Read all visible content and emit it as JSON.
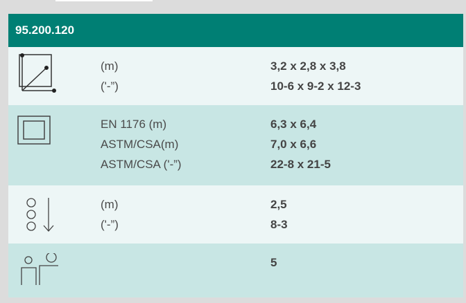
{
  "header": {
    "title": "95.200.120"
  },
  "rows": [
    {
      "icon": "dimensions-icon",
      "labels": [
        "(m)",
        "('-”)"
      ],
      "values": [
        "3,2 x 2,8 x 3,8",
        "10-6 x 9-2 x 12-3"
      ]
    },
    {
      "icon": "safety-area-icon",
      "labels": [
        "EN 1176 (m)",
        "ASTM/CSA(m)",
        "ASTM/CSA ('-”)"
      ],
      "values": [
        "6,3 x 6,4",
        "7,0 x 6,6",
        "22-8 x 21-5"
      ]
    },
    {
      "icon": "fall-height-icon",
      "labels": [
        "(m)",
        "('-”)"
      ],
      "values": [
        "2,5",
        "8-3"
      ]
    },
    {
      "icon": "users-icon",
      "labels": [],
      "values": [
        "5"
      ]
    }
  ],
  "colors": {
    "header": "#007f74",
    "row_light": "#edf6f6",
    "row_dark": "#c8e6e4",
    "background": "#dcdcdc"
  }
}
